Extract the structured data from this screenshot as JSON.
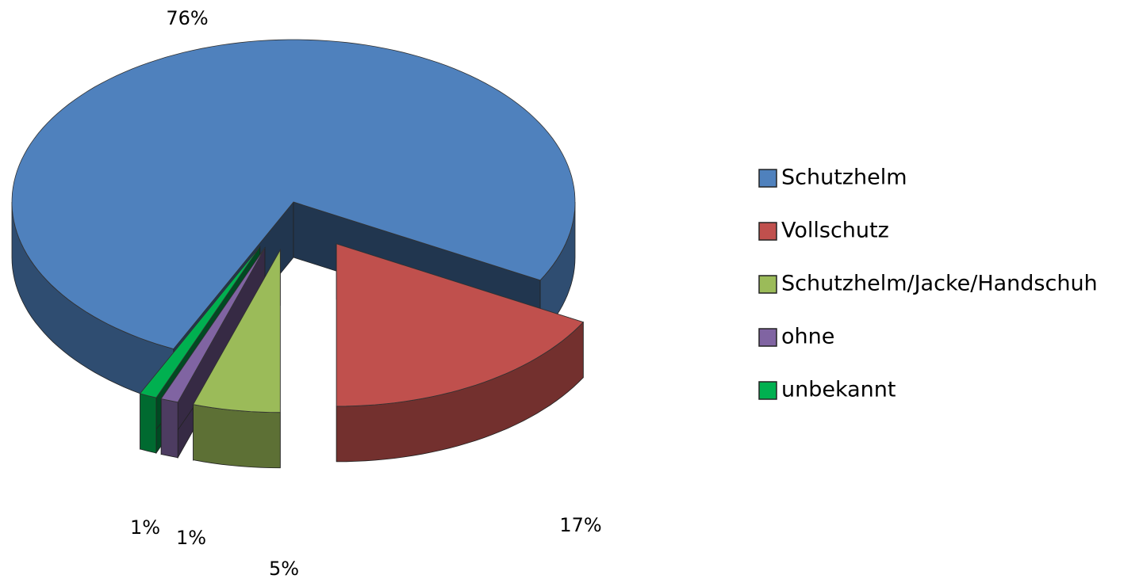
{
  "chart_data": {
    "type": "pie3d",
    "categories": [
      "Schutzhelm",
      "Vollschutz",
      "Schutzhelm/Jacke/Handschuh",
      "ohne",
      "unbekannt"
    ],
    "values": [
      76,
      17,
      5,
      1,
      1
    ],
    "value_labels": [
      "76%",
      "17%",
      "5%",
      "1%",
      "1%"
    ],
    "colors": [
      "#4f81bd",
      "#c0504d",
      "#9bbb59",
      "#8064a2",
      "#00b050"
    ],
    "legend": "right"
  }
}
